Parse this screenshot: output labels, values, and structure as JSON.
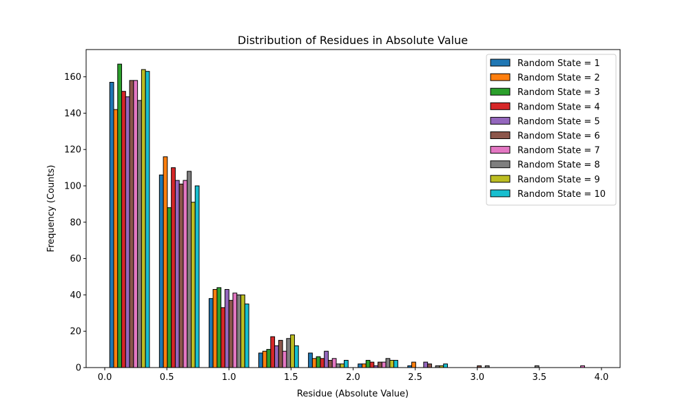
{
  "chart_data": {
    "type": "bar",
    "title": "Distribution of Residues in Absolute Value",
    "xlabel": "Residue (Absolute Value)",
    "ylabel": "Frequency (Counts)",
    "xlim": [
      -0.15,
      4.15
    ],
    "ylim": [
      0,
      175
    ],
    "xticks": [
      0.0,
      0.5,
      1.0,
      1.5,
      2.0,
      2.5,
      3.0,
      3.5,
      4.0
    ],
    "xtick_labels": [
      "0.0",
      "0.5",
      "1.0",
      "1.5",
      "2.0",
      "2.5",
      "3.0",
      "3.5",
      "4.0"
    ],
    "yticks": [
      0,
      20,
      40,
      60,
      80,
      100,
      120,
      140,
      160
    ],
    "ytick_labels": [
      "0",
      "20",
      "40",
      "60",
      "80",
      "100",
      "120",
      "140",
      "160"
    ],
    "bins": [
      0.04,
      0.44,
      0.84,
      1.24,
      1.64,
      2.04,
      2.44,
      2.84,
      3.24,
      3.64
    ],
    "bin_width": 0.4,
    "legend_position": "upper-right",
    "grid": false,
    "series": [
      {
        "name": "Random State = 1",
        "color": "#1f77b4",
        "values": [
          157,
          106,
          38,
          8,
          8,
          2,
          1,
          0,
          0,
          0
        ]
      },
      {
        "name": "Random State = 2",
        "color": "#ff7f0e",
        "values": [
          142,
          116,
          43,
          9,
          5,
          2,
          3,
          0,
          0,
          0
        ]
      },
      {
        "name": "Random State = 3",
        "color": "#2ca02c",
        "values": [
          167,
          88,
          44,
          10,
          6,
          4,
          0,
          0,
          0,
          0
        ]
      },
      {
        "name": "Random State = 4",
        "color": "#d62728",
        "values": [
          152,
          110,
          33,
          17,
          5,
          3,
          0,
          0,
          0,
          0
        ]
      },
      {
        "name": "Random State = 5",
        "color": "#9467bd",
        "values": [
          149,
          103,
          43,
          12,
          9,
          1,
          3,
          0,
          0,
          0
        ]
      },
      {
        "name": "Random State = 6",
        "color": "#8c564b",
        "values": [
          158,
          101,
          37,
          15,
          4,
          3,
          2,
          1,
          0,
          0
        ]
      },
      {
        "name": "Random State = 7",
        "color": "#e377c2",
        "values": [
          158,
          103,
          41,
          9,
          5,
          3,
          0,
          0,
          0,
          1
        ]
      },
      {
        "name": "Random State = 8",
        "color": "#7f7f7f",
        "values": [
          147,
          108,
          40,
          16,
          2,
          5,
          1,
          1,
          1,
          0
        ]
      },
      {
        "name": "Random State = 9",
        "color": "#bcbd22",
        "values": [
          164,
          91,
          40,
          18,
          2,
          4,
          1,
          0,
          0,
          0
        ]
      },
      {
        "name": "Random State = 10",
        "color": "#17becf",
        "values": [
          163,
          100,
          35,
          12,
          4,
          4,
          2,
          0,
          0,
          0
        ]
      }
    ]
  }
}
